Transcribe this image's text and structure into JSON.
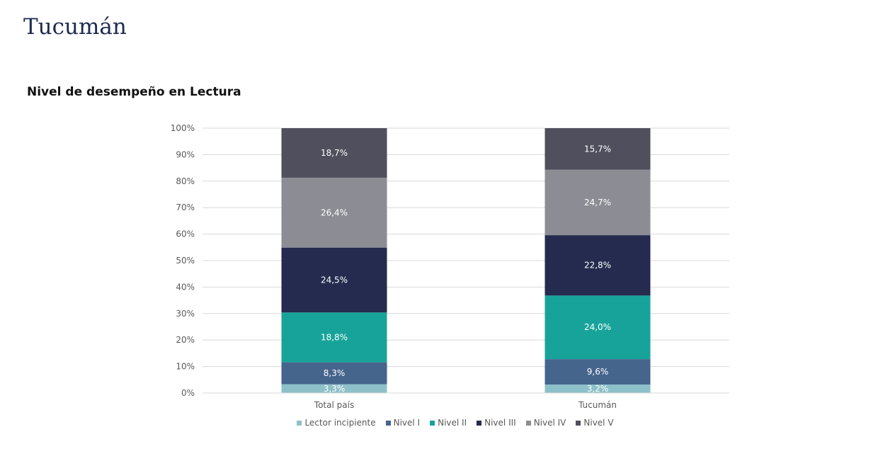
{
  "page": {
    "title": "Tucumán"
  },
  "chart_data": {
    "type": "bar",
    "stacked": true,
    "title": "Nivel de desempeño en Lectura",
    "xlabel": "",
    "ylabel": "",
    "categories": [
      "Total país",
      "Tucumán"
    ],
    "ylim": [
      0,
      100
    ],
    "yticks": [
      "0%",
      "10%",
      "20%",
      "30%",
      "40%",
      "50%",
      "60%",
      "70%",
      "80%",
      "90%",
      "100%"
    ],
    "grid": true,
    "legend_position": "bottom",
    "series": [
      {
        "name": "Lector incipiente",
        "color": "#8dc0c8",
        "label_color": "#ffffff",
        "values": [
          3.3,
          3.2
        ],
        "labels": [
          "3,3%",
          "3,2%"
        ]
      },
      {
        "name": "Nivel I",
        "color": "#46658d",
        "label_color": "#ffffff",
        "values": [
          8.3,
          9.6
        ],
        "labels": [
          "8,3%",
          "9,6%"
        ]
      },
      {
        "name": "Nivel II",
        "color": "#18a39a",
        "label_color": "#ffffff",
        "values": [
          18.8,
          24.0
        ],
        "labels": [
          "18,8%",
          "24,0%"
        ]
      },
      {
        "name": "Nivel III",
        "color": "#242b4f",
        "label_color": "#ffffff",
        "values": [
          24.5,
          22.8
        ],
        "labels": [
          "24,5%",
          "22,8%"
        ]
      },
      {
        "name": "Nivel IV",
        "color": "#8c8c94",
        "label_color": "#ffffff",
        "values": [
          26.4,
          24.7
        ],
        "labels": [
          "26,4%",
          "24,7%"
        ]
      },
      {
        "name": "Nivel V",
        "color": "#4f4f5d",
        "label_color": "#ffffff",
        "values": [
          18.7,
          15.7
        ],
        "labels": [
          "18,7%",
          "15,7%"
        ]
      }
    ]
  }
}
